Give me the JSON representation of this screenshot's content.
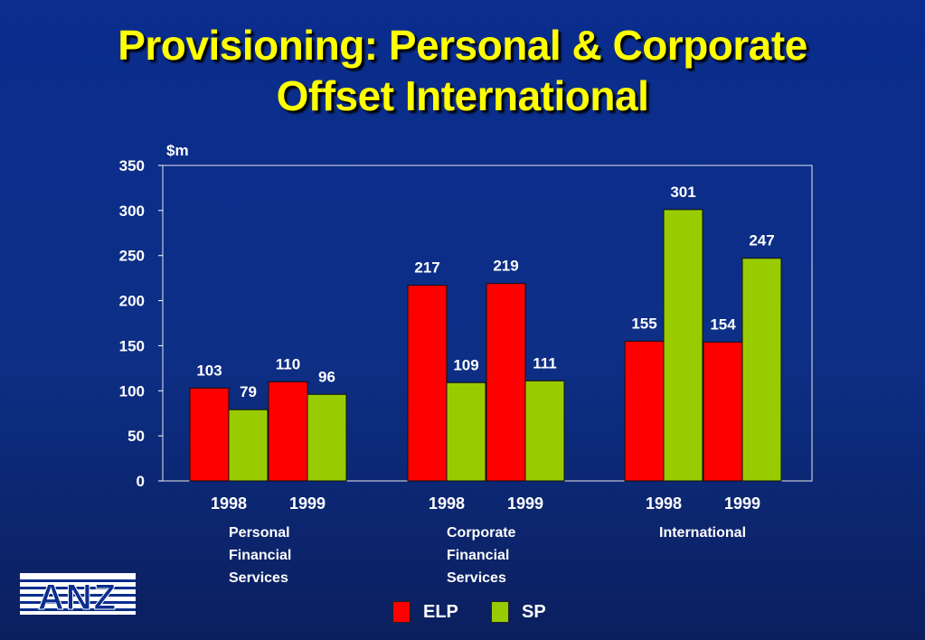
{
  "title_line1": "Provisioning:  Personal & Corporate",
  "title_line2": "Offset International",
  "logo_text": "ANZ",
  "colors": {
    "elp": "#ff0000",
    "sp": "#99cc00",
    "title": "#ffff00",
    "background": "#0a2d8e"
  },
  "chart_data": {
    "type": "bar",
    "ylabel": "$m",
    "ylim": [
      0,
      350
    ],
    "yticks": [
      0,
      50,
      100,
      150,
      200,
      250,
      300,
      350
    ],
    "grid": false,
    "legend_position": "bottom",
    "groups": [
      {
        "label_lines": [
          "Personal",
          "Financial",
          "Services"
        ],
        "years": [
          "1998",
          "1999"
        ],
        "ELP": [
          103,
          110
        ],
        "SP": [
          79,
          96
        ]
      },
      {
        "label_lines": [
          "Corporate",
          "Financial",
          "Services"
        ],
        "years": [
          "1998",
          "1999"
        ],
        "ELP": [
          217,
          219
        ],
        "SP": [
          109,
          111
        ]
      },
      {
        "label_lines": [
          "International"
        ],
        "years": [
          "1998",
          "1999"
        ],
        "ELP": [
          155,
          154
        ],
        "SP": [
          301,
          247
        ]
      }
    ],
    "series": [
      {
        "name": "ELP",
        "color": "#ff0000"
      },
      {
        "name": "SP",
        "color": "#99cc00"
      }
    ]
  }
}
